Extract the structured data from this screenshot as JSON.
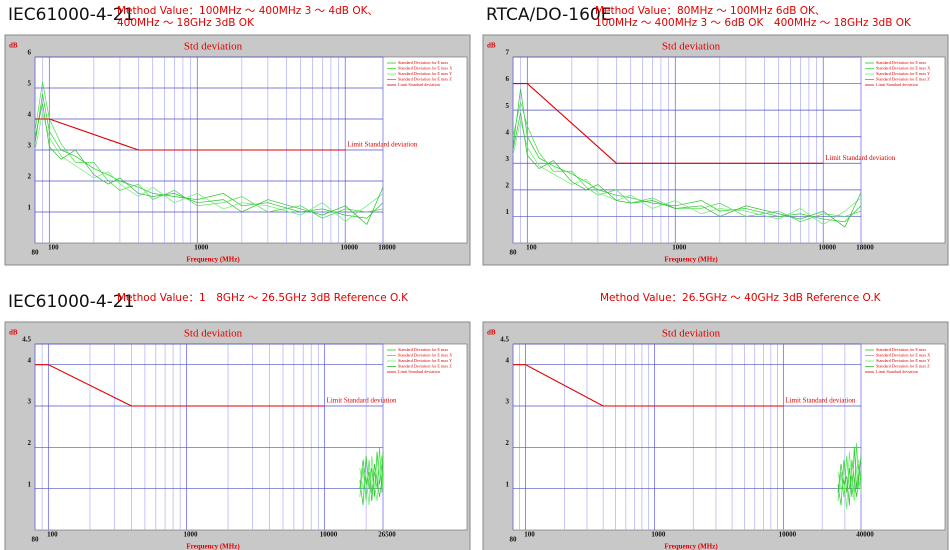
{
  "chart_data": [
    {
      "type": "line",
      "heading": "IEC61000-4-21",
      "method": [
        "Method Value：100MHz ～ 400MHz 3 ～ 4dB OK、",
        "400MHz ～ 18GHz 3dB OK"
      ],
      "title": "Std deviation",
      "ylabel": "dB",
      "xlabel": "Frequency (MHz)",
      "annotation": "Limit Standard deviation",
      "log_x": true,
      "grid": true,
      "minor_grid": true,
      "xlim": [
        80,
        18000
      ],
      "xticks": [
        80,
        100,
        1000,
        10000,
        18000
      ],
      "ylim": [
        0,
        6
      ],
      "yticks": [
        1,
        2,
        3,
        4,
        5,
        6
      ],
      "series": [
        {
          "name": "Standard Deviation for E max",
          "color": "#22cc22",
          "x": [
            80,
            90,
            100,
            120,
            150,
            200,
            250,
            300,
            400,
            500,
            700,
            1000,
            1500,
            2000,
            3000,
            5000,
            7000,
            10000,
            14000,
            18000
          ],
          "values": [
            3.2,
            4.8,
            3.6,
            3.0,
            2.8,
            2.4,
            2.2,
            2.0,
            1.8,
            1.6,
            1.5,
            1.4,
            1.6,
            1.2,
            1.3,
            1.0,
            1.1,
            0.9,
            0.8,
            1.3
          ]
        },
        {
          "name": "Standard Deviation for E max X",
          "color": "#44dd44",
          "x": [
            80,
            90,
            100,
            120,
            150,
            200,
            250,
            300,
            400,
            500,
            700,
            1000,
            1500,
            2000,
            3000,
            5000,
            7000,
            10000,
            14000,
            18000
          ],
          "values": [
            3.6,
            5.2,
            4.0,
            3.2,
            2.6,
            2.6,
            2.0,
            1.7,
            1.9,
            1.4,
            1.7,
            1.2,
            1.3,
            1.5,
            1.0,
            1.2,
            0.8,
            1.1,
            1.0,
            1.1
          ]
        },
        {
          "name": "Standard Deviation for E max Y",
          "color": "#66ee66",
          "x": [
            80,
            90,
            100,
            120,
            150,
            200,
            250,
            300,
            400,
            500,
            700,
            1000,
            1500,
            2000,
            3000,
            5000,
            7000,
            10000,
            14000,
            18000
          ],
          "values": [
            3.0,
            4.2,
            3.4,
            2.8,
            2.5,
            2.1,
            2.3,
            1.9,
            1.5,
            1.8,
            1.3,
            1.6,
            1.1,
            1.3,
            1.2,
            0.9,
            1.3,
            0.7,
            1.2,
            1.6
          ]
        },
        {
          "name": "Standard Deviation for E max Z",
          "color": "#33bb33",
          "x": [
            80,
            90,
            100,
            120,
            150,
            200,
            250,
            300,
            400,
            500,
            700,
            1000,
            1500,
            2000,
            3000,
            5000,
            7000,
            10000,
            14000,
            18000
          ],
          "values": [
            3.4,
            4.5,
            3.1,
            2.7,
            3.0,
            2.2,
            1.9,
            2.1,
            1.6,
            1.5,
            1.6,
            1.3,
            1.4,
            1.0,
            1.4,
            1.1,
            0.9,
            1.2,
            0.6,
            1.8
          ]
        },
        {
          "name": "Limit Standard deviation",
          "color": "#e00000",
          "x": [
            80,
            100,
            400,
            10000
          ],
          "values": [
            4,
            4,
            3,
            3
          ]
        }
      ]
    },
    {
      "type": "line",
      "heading": "RTCA/DO-160E",
      "method": [
        "Method Value：80MHz ～ 100MHz 6dB OK、",
        "100MHz ～ 400MHz 3 ～ 6dB OK　400MHz ～ 18GHz 3dB OK"
      ],
      "title": "Std deviation",
      "ylabel": "dB",
      "xlabel": "Frequency (MHz)",
      "annotation": "Limit Standard deviation",
      "log_x": true,
      "grid": true,
      "minor_grid": true,
      "xlim": [
        80,
        18000
      ],
      "xticks": [
        80,
        100,
        1000,
        10000,
        18000
      ],
      "ylim": [
        0,
        7
      ],
      "yticks": [
        1,
        2,
        3,
        4,
        5,
        6,
        7
      ],
      "series": [
        {
          "name": "Standard Deviation for E max",
          "color": "#22cc22",
          "x": [
            80,
            90,
            100,
            120,
            150,
            200,
            250,
            300,
            400,
            500,
            700,
            1000,
            1500,
            2000,
            3000,
            5000,
            7000,
            10000,
            14000,
            18000
          ],
          "values": [
            3.6,
            5.8,
            4.0,
            3.2,
            2.9,
            2.6,
            2.3,
            2.0,
            1.8,
            1.7,
            1.5,
            1.4,
            1.6,
            1.2,
            1.3,
            1.0,
            1.1,
            0.9,
            0.8,
            1.4
          ]
        },
        {
          "name": "Standard Deviation for E max X",
          "color": "#44dd44",
          "x": [
            80,
            90,
            100,
            120,
            150,
            200,
            250,
            300,
            400,
            500,
            700,
            1000,
            1500,
            2000,
            3000,
            5000,
            7000,
            10000,
            14000,
            18000
          ],
          "values": [
            4.0,
            5.3,
            4.4,
            3.4,
            2.7,
            2.7,
            2.1,
            1.8,
            2.0,
            1.5,
            1.7,
            1.3,
            1.3,
            1.5,
            1.0,
            1.2,
            0.8,
            1.1,
            1.0,
            1.2
          ]
        },
        {
          "name": "Standard Deviation for E max Y",
          "color": "#66ee66",
          "x": [
            80,
            90,
            100,
            120,
            150,
            200,
            250,
            300,
            400,
            500,
            700,
            1000,
            1500,
            2000,
            3000,
            5000,
            7000,
            10000,
            14000,
            18000
          ],
          "values": [
            3.3,
            4.6,
            3.6,
            2.9,
            2.6,
            2.2,
            2.4,
            1.9,
            1.6,
            1.8,
            1.3,
            1.6,
            1.1,
            1.3,
            1.2,
            0.9,
            1.3,
            0.7,
            1.2,
            1.7
          ]
        },
        {
          "name": "Standard Deviation for E max Z",
          "color": "#33bb33",
          "x": [
            80,
            90,
            100,
            120,
            150,
            200,
            250,
            300,
            400,
            500,
            700,
            1000,
            1500,
            2000,
            3000,
            5000,
            7000,
            10000,
            14000,
            18000
          ],
          "values": [
            3.5,
            4.9,
            3.3,
            2.8,
            3.1,
            2.3,
            2.0,
            2.2,
            1.6,
            1.5,
            1.6,
            1.3,
            1.4,
            1.0,
            1.4,
            1.1,
            0.9,
            1.2,
            0.6,
            1.9
          ]
        },
        {
          "name": "Limit Standard deviation",
          "color": "#e00000",
          "x": [
            80,
            100,
            400,
            10000
          ],
          "values": [
            6,
            6,
            3,
            3
          ]
        }
      ]
    },
    {
      "type": "line",
      "heading": "IEC61000-4-21",
      "method": [
        "Method Value：1　8GHz ～ 26.5GHz 3dB Reference O.K"
      ],
      "title": "Std deviation",
      "ylabel": "dB",
      "xlabel": "Frequency (MHz)",
      "annotation": "Limit Standard deviation",
      "log_x": true,
      "grid": true,
      "minor_grid": true,
      "xlim": [
        80,
        26500
      ],
      "xticks": [
        80,
        100,
        1000,
        10000,
        26500
      ],
      "ylim": [
        0,
        4.5
      ],
      "yticks": [
        1,
        2,
        3,
        4,
        4.5
      ],
      "series": [
        {
          "name": "Standard Deviation for E max",
          "color": "#22cc22",
          "x": [
            18000,
            19000,
            20000,
            21000,
            22000,
            23000,
            24000,
            25000,
            26000,
            26500
          ],
          "values": [
            1.2,
            0.6,
            1.8,
            1.0,
            1.5,
            0.8,
            1.9,
            1.1,
            1.6,
            1.3
          ]
        },
        {
          "name": "Standard Deviation for E max X",
          "color": "#44dd44",
          "x": [
            18000,
            19000,
            20000,
            21000,
            22000,
            23000,
            24000,
            25000,
            26000,
            26500
          ],
          "values": [
            0.8,
            1.5,
            0.7,
            1.7,
            0.9,
            1.4,
            1.0,
            2.0,
            0.9,
            1.5
          ]
        },
        {
          "name": "Standard Deviation for E max Y",
          "color": "#66ee66",
          "x": [
            18000,
            19000,
            20000,
            21000,
            22000,
            23000,
            24000,
            25000,
            26000,
            26500
          ],
          "values": [
            1.5,
            1.0,
            1.3,
            0.6,
            1.8,
            1.1,
            0.7,
            1.4,
            1.8,
            1.0
          ]
        },
        {
          "name": "Standard Deviation for E max Z",
          "color": "#33bb33",
          "x": [
            18000,
            19000,
            20000,
            21000,
            22000,
            23000,
            24000,
            25000,
            26000,
            26500
          ],
          "values": [
            1.0,
            1.7,
            1.1,
            1.4,
            0.7,
            1.6,
            1.2,
            0.8,
            1.2,
            1.9
          ]
        },
        {
          "name": "Limit Standard deviation",
          "color": "#e00000",
          "x": [
            80,
            100,
            400,
            10000
          ],
          "values": [
            4,
            4,
            3,
            3
          ]
        }
      ]
    },
    {
      "type": "line",
      "method": [
        "Method Value：26.5GHz ～ 40GHz 3dB Reference O.K"
      ],
      "title": "Std deviation",
      "ylabel": "dB",
      "xlabel": "Frequency (MHz)",
      "annotation": "Limit Standard deviation",
      "log_x": true,
      "grid": true,
      "minor_grid": true,
      "xlim": [
        80,
        40000
      ],
      "xticks": [
        80,
        100,
        1000,
        10000,
        40000
      ],
      "ylim": [
        0,
        4.5
      ],
      "yticks": [
        1,
        2,
        3,
        4,
        4.5
      ],
      "series": [
        {
          "name": "Standard Deviation for E max",
          "color": "#22cc22",
          "x": [
            26500,
            28000,
            29500,
            31000,
            32500,
            34000,
            35500,
            37000,
            38500,
            40000
          ],
          "values": [
            1.1,
            0.6,
            1.7,
            0.9,
            1.5,
            0.8,
            2.0,
            1.0,
            1.6,
            1.2
          ]
        },
        {
          "name": "Standard Deviation for E max X",
          "color": "#44dd44",
          "x": [
            26500,
            28000,
            29500,
            31000,
            32500,
            34000,
            35500,
            37000,
            38500,
            40000
          ],
          "values": [
            0.7,
            1.4,
            0.8,
            1.8,
            1.0,
            1.3,
            0.9,
            2.1,
            1.0,
            1.4
          ]
        },
        {
          "name": "Standard Deviation for E max Y",
          "color": "#66ee66",
          "x": [
            26500,
            28000,
            29500,
            31000,
            32500,
            34000,
            35500,
            37000,
            38500,
            40000
          ],
          "values": [
            1.4,
            1.0,
            1.2,
            0.5,
            1.9,
            1.1,
            0.7,
            1.5,
            1.7,
            0.9
          ]
        },
        {
          "name": "Standard Deviation for E max Z",
          "color": "#33bb33",
          "x": [
            26500,
            28000,
            29500,
            31000,
            32500,
            34000,
            35500,
            37000,
            38500,
            40000
          ],
          "values": [
            0.9,
            1.6,
            1.1,
            1.3,
            0.6,
            1.7,
            1.2,
            0.8,
            1.3,
            1.8
          ]
        },
        {
          "name": "Limit Standard deviation",
          "color": "#e00000",
          "x": [
            80,
            100,
            400,
            10000
          ],
          "values": [
            4,
            4,
            3,
            3
          ]
        }
      ]
    }
  ]
}
